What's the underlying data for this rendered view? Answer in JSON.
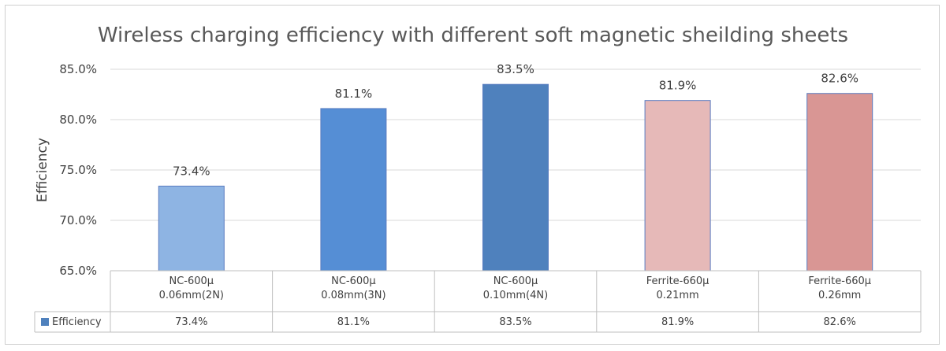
{
  "chart_data": {
    "type": "bar",
    "title": "Wireless charging efficiency with different soft magnetic sheilding sheets",
    "ylabel": "Efficiency",
    "xlabel": "",
    "ylim": [
      65.0,
      85.0
    ],
    "yticks": [
      "85.0%",
      "80.0%",
      "75.0%",
      "70.0%",
      "65.0%"
    ],
    "ytick_values": [
      85,
      80,
      75,
      70,
      65
    ],
    "grid": true,
    "legend_position": "data-table",
    "categories": [
      [
        "NC-600µ",
        "0.06mm(2N)"
      ],
      [
        "NC-600µ",
        "0.08mm(3N)"
      ],
      [
        "NC-600µ",
        "0.10mm(4N)"
      ],
      [
        "Ferrite-660µ",
        "0.21mm"
      ],
      [
        "Ferrite-660µ",
        "0.26mm"
      ]
    ],
    "series": [
      {
        "name": "Efficiency",
        "values": [
          73.4,
          81.1,
          83.5,
          81.9,
          82.6
        ],
        "labels": [
          "73.4%",
          "81.1%",
          "83.5%",
          "81.9%",
          "82.6%"
        ],
        "colors": [
          "#8eb4e3",
          "#558ed5",
          "#4f81bd",
          "#e6b9b8",
          "#d99694"
        ],
        "legend_color": "#4f81bd"
      }
    ]
  }
}
